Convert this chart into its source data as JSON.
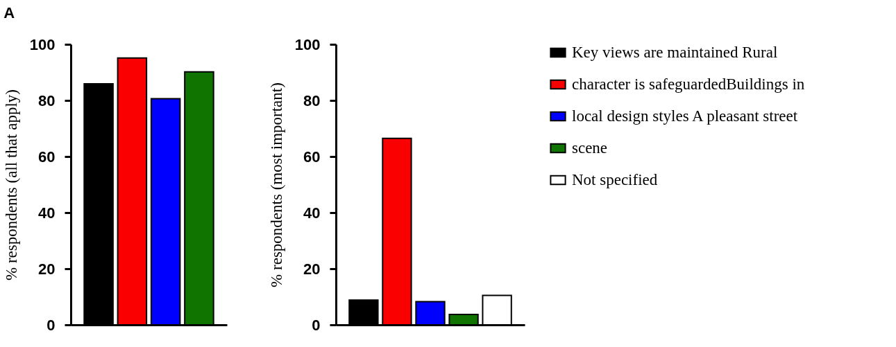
{
  "chart_data": [
    {
      "type": "bar",
      "title": "A",
      "ylabel": "% respondents (all that apply)",
      "categories": [
        null,
        null,
        null,
        null
      ],
      "values": [
        85.9,
        95.1,
        80.6,
        90.2
      ],
      "colors": [
        "#000000",
        "#fa0000",
        "#0000ff",
        "#107500"
      ],
      "ylim": [
        0,
        100
      ],
      "yticks": [
        0,
        20,
        40,
        60,
        80,
        100
      ],
      "tick_labels": "y"
    },
    {
      "type": "bar",
      "ylabel": "% respondents (most important)",
      "categories": [
        null,
        null,
        null,
        null,
        null
      ],
      "stacked": true,
      "series": [
        {
          "name": "Key views are maintained Rural",
          "color": "#000000",
          "values": [
            8.8,
            null,
            null,
            null,
            null
          ]
        },
        {
          "name": "character is safeguardedBuildings in",
          "color": "#fa0000",
          "values": [
            null,
            66.5,
            null,
            null,
            null
          ]
        },
        {
          "name": "local design styles A pleasant street",
          "color": "#0000ff",
          "values": [
            null,
            null,
            8.3,
            null,
            null
          ]
        },
        {
          "name": "scene",
          "color": "#107500",
          "values": [
            null,
            null,
            null,
            3.7,
            null
          ]
        },
        {
          "name": "Not specified",
          "color": "#ffffff",
          "values": [
            null,
            null,
            null,
            null,
            10.5
          ]
        }
      ],
      "ylim": [
        0,
        100
      ],
      "yticks": [
        0,
        20,
        40,
        60,
        80,
        100
      ],
      "tick_labels": "y",
      "legend": "right"
    }
  ]
}
